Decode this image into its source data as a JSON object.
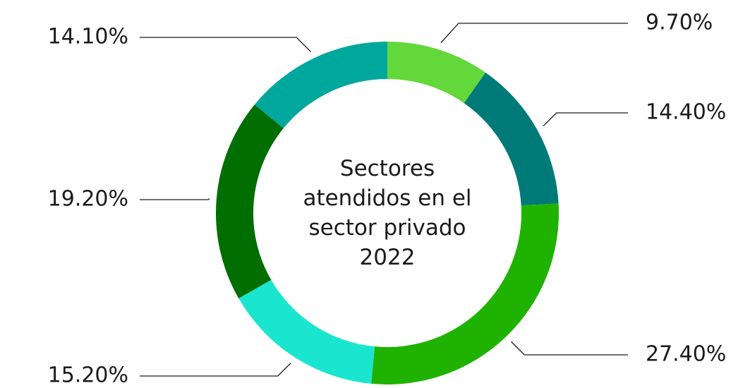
{
  "chart_data": {
    "type": "donut",
    "title": "Sectores atendidos en el sector privado 2022",
    "values": [
      9.7,
      14.4,
      27.4,
      15.2,
      19.2,
      14.1
    ],
    "value_labels": [
      "9.70%",
      "14.40%",
      "27.40%",
      "15.20%",
      "19.20%",
      "14.10%"
    ],
    "colors": [
      "#62d83a",
      "#007a78",
      "#1fb200",
      "#1ae6d0",
      "#006e00",
      "#00a79c"
    ]
  }
}
